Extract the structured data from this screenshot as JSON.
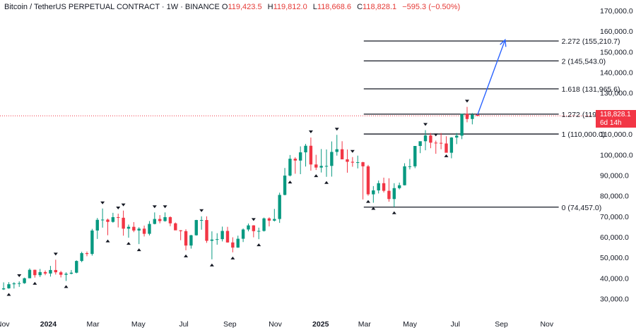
{
  "header": {
    "symbol": "Bitcoin / TetherUS PERPETUAL CONTRACT · 1W · BINANCE",
    "open_label": "O",
    "open": "119,423.5",
    "high_label": "H",
    "high": "119,812.0",
    "low_label": "L",
    "low": "118,668.6",
    "close_label": "C",
    "close": "118,828.1",
    "change": "−595.3 (−0.50%)"
  },
  "price_tag": {
    "price": "118,828.1",
    "countdown": "6d 14h",
    "color": "#f23645"
  },
  "colors": {
    "up": "#089981",
    "down": "#f23645",
    "projection": "#2962ff",
    "text": "#131722",
    "axis_text": "#131722"
  },
  "chart_data": {
    "type": "candlestick",
    "yaxis_ticks": [
      "170,000.0",
      "160,000.0",
      "150,000.0",
      "140,000.0",
      "130,000.0",
      "120,000.0",
      "110,000.0",
      "100,000.0",
      "90,000.0",
      "80,000.0",
      "70,000.0",
      "60,000.0",
      "50,000.0",
      "40,000.0",
      "30,000.0"
    ],
    "ylim": [
      25000,
      172000
    ],
    "xaxis_labels": [
      {
        "label": "Nov",
        "date": "2023-11-01"
      },
      {
        "label": "2024",
        "date": "2024-01-01",
        "bold": true
      },
      {
        "label": "Mar",
        "date": "2024-03-01"
      },
      {
        "label": "May",
        "date": "2024-05-01"
      },
      {
        "label": "Jul",
        "date": "2024-07-01"
      },
      {
        "label": "Sep",
        "date": "2024-09-01"
      },
      {
        "label": "Nov",
        "date": "2024-11-01"
      },
      {
        "label": "2025",
        "date": "2025-01-01",
        "bold": true
      },
      {
        "label": "Mar",
        "date": "2025-03-01"
      },
      {
        "label": "May",
        "date": "2025-05-01"
      },
      {
        "label": "Jul",
        "date": "2025-07-01"
      },
      {
        "label": "Sep",
        "date": "2025-09-01"
      },
      {
        "label": "Nov",
        "date": "2025-11-01"
      }
    ],
    "xlim": [
      "2023-10-28",
      "2026-01-01"
    ],
    "candles": [
      [
        "2023-10-30",
        34500,
        37900,
        34200,
        35000
      ],
      [
        "2023-11-06",
        35000,
        38000,
        34800,
        37000
      ],
      [
        "2023-11-13",
        37000,
        38000,
        34900,
        37400
      ],
      [
        "2023-11-20",
        37400,
        38400,
        35700,
        37500
      ],
      [
        "2023-11-27",
        37500,
        40200,
        37200,
        39900
      ],
      [
        "2023-12-04",
        39900,
        44700,
        39900,
        44000
      ],
      [
        "2023-12-11",
        44000,
        44100,
        40200,
        41400
      ],
      [
        "2023-12-18",
        41400,
        44400,
        40500,
        42900
      ],
      [
        "2023-12-25",
        42900,
        43700,
        41400,
        42200
      ],
      [
        "2024-01-01",
        42200,
        45900,
        40700,
        43900
      ],
      [
        "2024-01-08",
        43900,
        48900,
        41700,
        42800
      ],
      [
        "2024-01-15",
        42800,
        43500,
        40300,
        41600
      ],
      [
        "2024-01-22",
        41600,
        42800,
        38600,
        42100
      ],
      [
        "2024-01-29",
        42100,
        43900,
        41800,
        42600
      ],
      [
        "2024-02-05",
        42600,
        48600,
        42300,
        48300
      ],
      [
        "2024-02-12",
        48300,
        52800,
        47700,
        52100
      ],
      [
        "2024-02-19",
        52100,
        52900,
        50600,
        51700
      ],
      [
        "2024-02-26",
        51700,
        63900,
        50900,
        63100
      ],
      [
        "2024-03-04",
        63100,
        69200,
        59000,
        68300
      ],
      [
        "2024-03-11",
        68300,
        73800,
        64500,
        68400
      ],
      [
        "2024-03-18",
        68400,
        68900,
        60800,
        67300
      ],
      [
        "2024-03-25",
        67300,
        71700,
        66900,
        69600
      ],
      [
        "2024-04-01",
        69600,
        71300,
        64600,
        69300
      ],
      [
        "2024-04-08",
        69300,
        72800,
        60600,
        64000
      ],
      [
        "2024-04-15",
        64000,
        66000,
        59600,
        64900
      ],
      [
        "2024-04-22",
        64900,
        67200,
        62300,
        63100
      ],
      [
        "2024-04-29",
        63100,
        64700,
        56500,
        64000
      ],
      [
        "2024-05-06",
        64000,
        65500,
        60200,
        61500
      ],
      [
        "2024-05-13",
        61500,
        67700,
        60700,
        66300
      ],
      [
        "2024-05-20",
        66300,
        71900,
        66100,
        68700
      ],
      [
        "2024-05-27",
        68700,
        70600,
        66600,
        67700
      ],
      [
        "2024-06-03",
        67700,
        71900,
        67400,
        69600
      ],
      [
        "2024-06-10",
        69600,
        70000,
        65200,
        66600
      ],
      [
        "2024-06-17",
        66600,
        67000,
        63300,
        63200
      ],
      [
        "2024-06-24",
        63200,
        63300,
        58400,
        62800
      ],
      [
        "2024-07-01",
        62800,
        63700,
        53500,
        55800
      ],
      [
        "2024-07-08",
        55800,
        61000,
        54300,
        60800
      ],
      [
        "2024-07-15",
        60800,
        68300,
        60600,
        68200
      ],
      [
        "2024-07-22",
        68200,
        70000,
        63500,
        68200
      ],
      [
        "2024-07-29",
        68200,
        70000,
        57100,
        58100
      ],
      [
        "2024-08-05",
        58100,
        62700,
        49100,
        58700
      ],
      [
        "2024-08-12",
        58700,
        61800,
        56200,
        58900
      ],
      [
        "2024-08-19",
        58900,
        65000,
        57800,
        62900
      ],
      [
        "2024-08-26",
        62900,
        64900,
        57200,
        57300
      ],
      [
        "2024-09-02",
        57300,
        59800,
        52500,
        54800
      ],
      [
        "2024-09-09",
        54800,
        60600,
        54700,
        59100
      ],
      [
        "2024-09-16",
        59100,
        64100,
        57500,
        63600
      ],
      [
        "2024-09-23",
        63600,
        66500,
        62700,
        65600
      ],
      [
        "2024-09-30",
        65600,
        65700,
        59800,
        62800
      ],
      [
        "2024-10-07",
        62800,
        64500,
        58900,
        62900
      ],
      [
        "2024-10-14",
        62900,
        69400,
        62600,
        69000
      ],
      [
        "2024-10-21",
        69000,
        69500,
        65100,
        67900
      ],
      [
        "2024-10-28",
        67900,
        73600,
        67500,
        68700
      ],
      [
        "2024-11-04",
        68700,
        81500,
        66800,
        80400
      ],
      [
        "2024-11-11",
        80400,
        93500,
        80200,
        89800
      ],
      [
        "2024-11-18",
        89800,
        99800,
        89400,
        98000
      ],
      [
        "2024-11-25",
        98000,
        98700,
        90700,
        97100
      ],
      [
        "2024-12-02",
        97100,
        104000,
        90500,
        101100
      ],
      [
        "2024-12-09",
        101100,
        105200,
        94200,
        104300
      ],
      [
        "2024-12-16",
        104300,
        108300,
        92200,
        95200
      ],
      [
        "2024-12-23",
        95200,
        99900,
        92500,
        93700
      ],
      [
        "2024-12-30",
        93700,
        102700,
        91300,
        94500
      ],
      [
        "2025-01-06",
        94500,
        102500,
        89200,
        94500
      ],
      [
        "2025-01-13",
        94500,
        106400,
        89300,
        101300
      ],
      [
        "2025-01-20",
        101300,
        109600,
        99500,
        102600
      ],
      [
        "2025-01-27",
        102600,
        106500,
        97800,
        97700
      ],
      [
        "2025-02-03",
        97700,
        102500,
        91200,
        96500
      ],
      [
        "2025-02-10",
        96500,
        98800,
        94100,
        96100
      ],
      [
        "2025-02-17",
        96100,
        99500,
        93300,
        96300
      ],
      [
        "2025-02-24",
        96300,
        96500,
        78200,
        94300
      ],
      [
        "2025-03-03",
        94300,
        95000,
        80000,
        80700
      ],
      [
        "2025-03-10",
        80700,
        84700,
        76600,
        82600
      ],
      [
        "2025-03-17",
        82600,
        87400,
        81100,
        86100
      ],
      [
        "2025-03-24",
        86100,
        88800,
        81600,
        82400
      ],
      [
        "2025-03-31",
        82400,
        88500,
        77100,
        78400
      ],
      [
        "2025-04-07",
        78400,
        86100,
        74500,
        83700
      ],
      [
        "2025-04-14",
        83700,
        86400,
        83100,
        85100
      ],
      [
        "2025-04-21",
        85100,
        95800,
        85000,
        94300
      ],
      [
        "2025-04-28",
        94300,
        97900,
        92800,
        94300
      ],
      [
        "2025-05-05",
        94300,
        104200,
        93400,
        104200
      ],
      [
        "2025-05-12",
        104200,
        105800,
        100700,
        106500
      ],
      [
        "2025-05-19",
        106500,
        111900,
        102100,
        109300
      ],
      [
        "2025-05-26",
        109300,
        110500,
        103100,
        105800
      ],
      [
        "2025-06-02",
        105800,
        106800,
        100400,
        105700
      ],
      [
        "2025-06-09",
        105700,
        110500,
        102600,
        105400
      ],
      [
        "2025-06-16",
        105400,
        108900,
        102200,
        100900
      ],
      [
        "2025-06-23",
        100900,
        108500,
        98200,
        108300
      ],
      [
        "2025-06-30",
        108300,
        110500,
        105100,
        109200
      ],
      [
        "2025-07-07",
        109200,
        119500,
        107500,
        119800
      ],
      [
        "2025-07-14",
        119800,
        123200,
        115700,
        117300
      ],
      [
        "2025-07-21",
        117300,
        120200,
        114700,
        119400
      ],
      [
        "2025-07-28",
        119423.5,
        119812.0,
        118668.6,
        118828.1
      ]
    ],
    "pivot_markers": [
      [
        "2023-11-06",
        "below"
      ],
      [
        "2023-11-20",
        "above"
      ],
      [
        "2023-12-11",
        "below"
      ],
      [
        "2024-01-08",
        "above"
      ],
      [
        "2024-01-22",
        "below"
      ],
      [
        "2024-03-11",
        "above"
      ],
      [
        "2024-03-18",
        "below"
      ],
      [
        "2024-04-01",
        "above"
      ],
      [
        "2024-04-15",
        "below"
      ],
      [
        "2024-04-29",
        "below"
      ],
      [
        "2024-04-08",
        "above"
      ],
      [
        "2024-05-20",
        "above"
      ],
      [
        "2024-06-03",
        "above"
      ],
      [
        "2024-07-01",
        "below"
      ],
      [
        "2024-07-22",
        "above"
      ],
      [
        "2024-08-05",
        "below"
      ],
      [
        "2024-09-02",
        "below"
      ],
      [
        "2024-09-30",
        "above"
      ],
      [
        "2024-10-07",
        "below"
      ],
      [
        "2024-11-18",
        "below"
      ],
      [
        "2024-12-16",
        "above"
      ],
      [
        "2024-12-23",
        "below"
      ],
      [
        "2025-01-06",
        "below"
      ],
      [
        "2025-01-20",
        "above"
      ],
      [
        "2025-02-10",
        "above"
      ],
      [
        "2025-03-03",
        "below"
      ],
      [
        "2025-03-10",
        "below"
      ],
      [
        "2025-04-07",
        "below"
      ],
      [
        "2025-05-19",
        "above"
      ],
      [
        "2025-06-16",
        "below"
      ],
      [
        "2025-06-02",
        "above"
      ],
      [
        "2025-07-14",
        "above"
      ]
    ],
    "fib_levels": [
      {
        "ratio": "2.272",
        "label": "2.272 (155,210.7)",
        "price": 155210.7
      },
      {
        "ratio": "2",
        "label": "2 (145,543.0)",
        "price": 145543.0
      },
      {
        "ratio": "1.618",
        "label": "1.618 (131,965.6)",
        "price": 131965.6
      },
      {
        "ratio": "1.272",
        "label": "1.272 (119,667.7)",
        "price": 119667.7
      },
      {
        "ratio": "1",
        "label": "1 (110,000.0)",
        "price": 110000.0
      },
      {
        "ratio": "0",
        "label": "0 (74,457.0)",
        "price": 74457.0
      }
    ],
    "fib_start": "2025-02-28",
    "fib_end": "2025-11-17",
    "projection_arrow": {
      "from_date": "2025-07-28",
      "from_price": 119300,
      "to_date": "2025-09-06",
      "to_price": 155800
    },
    "current_price": 118828.1
  }
}
